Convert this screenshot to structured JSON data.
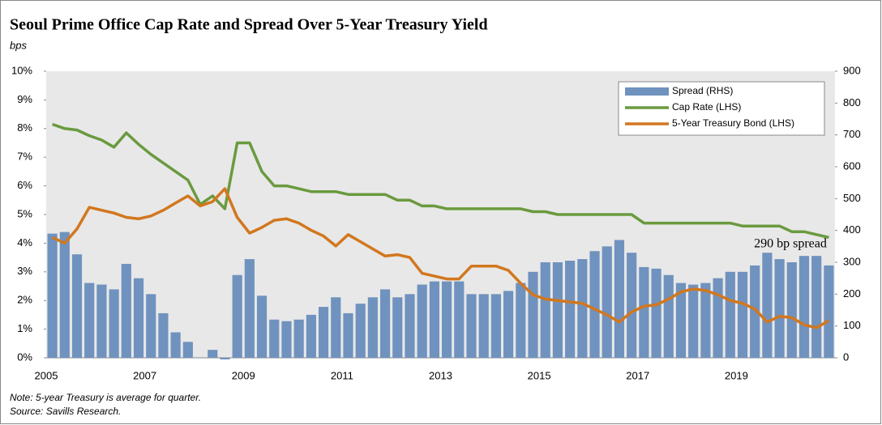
{
  "chart_data": {
    "type": "bar-line",
    "title": "Seoul Prime Office Cap Rate and Spread Over 5-Year Treasury Yield",
    "subtitle": "bps",
    "notes": [
      "Note: 5-year Treasury is average for quarter.",
      "Source: Savills Research."
    ],
    "annotation": "290 bp spread",
    "categories": [
      "2005",
      null,
      null,
      null,
      null,
      null,
      null,
      null,
      "2007",
      null,
      null,
      null,
      null,
      null,
      null,
      null,
      "2009",
      null,
      null,
      null,
      null,
      null,
      null,
      null,
      "2011",
      null,
      null,
      null,
      null,
      null,
      null,
      null,
      "2013",
      null,
      null,
      null,
      null,
      null,
      null,
      null,
      "2015",
      null,
      null,
      null,
      null,
      null,
      null,
      null,
      "2017",
      null,
      null,
      null,
      null,
      null,
      null,
      null,
      "2019",
      null,
      null,
      null,
      null,
      null,
      null,
      null
    ],
    "series": [
      {
        "name": "Spread (RHS)",
        "color": "#7092be",
        "kind": "bar",
        "axis": "y2",
        "values": [
          390,
          395,
          325,
          235,
          230,
          215,
          295,
          250,
          200,
          140,
          80,
          50,
          0,
          25,
          -5,
          260,
          310,
          195,
          120,
          115,
          120,
          135,
          160,
          190,
          140,
          170,
          190,
          215,
          190,
          200,
          230,
          240,
          240,
          240,
          200,
          200,
          200,
          210,
          235,
          270,
          300,
          300,
          305,
          310,
          335,
          350,
          370,
          330,
          285,
          280,
          260,
          235,
          230,
          235,
          250,
          270,
          270,
          290,
          330,
          310,
          300,
          320,
          320,
          290
        ]
      },
      {
        "name": "Cap Rate (LHS)",
        "color": "#6a9a3f",
        "kind": "line",
        "values": [
          8.15,
          8.0,
          7.95,
          7.75,
          7.6,
          7.35,
          7.85,
          7.45,
          7.1,
          6.8,
          6.5,
          6.2,
          5.35,
          5.65,
          5.2,
          7.5,
          7.5,
          6.5,
          6.0,
          6.0,
          5.9,
          5.8,
          5.8,
          5.8,
          5.7,
          5.7,
          5.7,
          5.7,
          5.5,
          5.5,
          5.3,
          5.3,
          5.2,
          5.2,
          5.2,
          5.2,
          5.2,
          5.2,
          5.2,
          5.1,
          5.1,
          5.0,
          5.0,
          5.0,
          5.0,
          5.0,
          5.0,
          5.0,
          4.7,
          4.7,
          4.7,
          4.7,
          4.7,
          4.7,
          4.7,
          4.7,
          4.6,
          4.6,
          4.6,
          4.6,
          4.4,
          4.4,
          4.3,
          4.2
        ]
      },
      {
        "name": "5-Year Treasury Bond (LHS)",
        "color": "#d2771e",
        "kind": "line",
        "values": [
          4.2,
          4.0,
          4.5,
          5.25,
          5.15,
          5.05,
          4.9,
          4.85,
          4.95,
          5.15,
          5.4,
          5.65,
          5.3,
          5.45,
          5.9,
          4.9,
          4.35,
          4.55,
          4.8,
          4.85,
          4.7,
          4.45,
          4.25,
          3.9,
          4.3,
          4.05,
          3.8,
          3.55,
          3.6,
          3.5,
          2.95,
          2.85,
          2.75,
          2.75,
          3.2,
          3.2,
          3.2,
          3.05,
          2.6,
          2.2,
          2.05,
          2.0,
          1.95,
          1.9,
          1.7,
          1.5,
          1.25,
          1.6,
          1.8,
          1.85,
          2.05,
          2.3,
          2.4,
          2.35,
          2.2,
          2.0,
          1.9,
          1.7,
          1.25,
          1.45,
          1.4,
          1.15,
          1.05,
          1.3
        ]
      }
    ],
    "ylim": [
      0,
      10
    ],
    "yticks": [
      {
        "value": 0,
        "label": "0%"
      },
      {
        "value": 1,
        "label": "1%"
      },
      {
        "value": 2,
        "label": "2%"
      },
      {
        "value": 3,
        "label": "3%"
      },
      {
        "value": 4,
        "label": "4%"
      },
      {
        "value": 5,
        "label": "5%"
      },
      {
        "value": 6,
        "label": "6%"
      },
      {
        "value": 7,
        "label": "7%"
      },
      {
        "value": 8,
        "label": "8%"
      },
      {
        "value": 9,
        "label": "9%"
      },
      {
        "value": 10,
        "label": "10%"
      }
    ],
    "y2lim": [
      0,
      900
    ],
    "y2ticks": [
      0,
      100,
      200,
      300,
      400,
      500,
      600,
      700,
      800,
      900
    ],
    "legend": "upper right",
    "grid": false
  }
}
